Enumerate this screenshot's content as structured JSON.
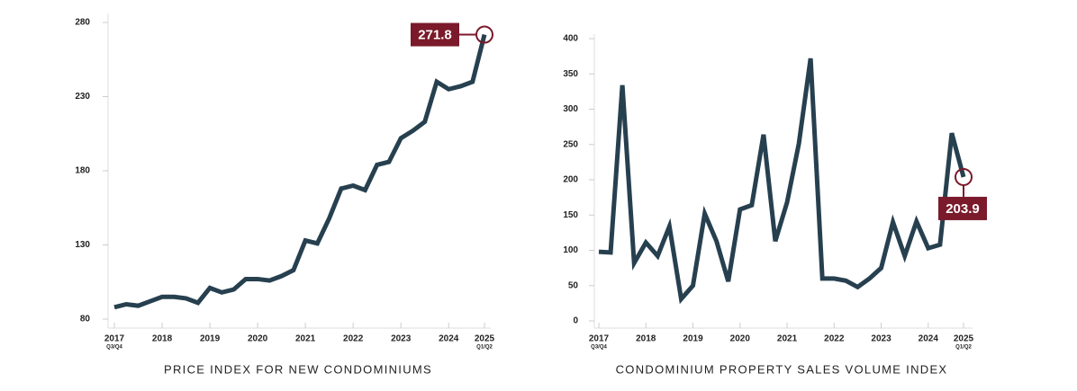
{
  "chart_data": [
    {
      "type": "line",
      "title": "PRICE INDEX FOR NEW CONDOMINIUMS",
      "categories": [
        "2017",
        null,
        null,
        null,
        "2018",
        null,
        null,
        null,
        "2019",
        null,
        null,
        null,
        "2020",
        null,
        null,
        null,
        "2021",
        null,
        null,
        null,
        "2022",
        null,
        null,
        null,
        "2023",
        null,
        null,
        null,
        "2024",
        null,
        null,
        "2025"
      ],
      "category_sublabels": [
        "Q3/Q4",
        null,
        null,
        null,
        null,
        null,
        null,
        null,
        null,
        null,
        null,
        null,
        null,
        null,
        null,
        null,
        null,
        null,
        null,
        null,
        null,
        null,
        null,
        null,
        null,
        null,
        null,
        null,
        null,
        null,
        null,
        "Q1/Q2"
      ],
      "series": [
        {
          "color": "#27404f",
          "values": [
            88,
            90,
            89,
            92,
            95,
            95,
            94,
            91,
            101,
            98,
            100,
            107,
            107,
            106,
            109,
            113,
            133,
            131,
            148,
            168,
            170,
            167,
            184,
            186,
            202,
            207,
            213,
            240,
            235,
            237,
            240,
            271.8
          ]
        }
      ],
      "ylim": [
        80,
        280
      ],
      "yticks": [
        80,
        130,
        180,
        230,
        280
      ],
      "callout_color": "#7a1a2a"
    },
    {
      "type": "line",
      "title": "CONDOMINIUM PROPERTY SALES VOLUME INDEX",
      "categories": [
        "2017",
        null,
        null,
        null,
        "2018",
        null,
        null,
        null,
        "2019",
        null,
        null,
        null,
        "2020",
        null,
        null,
        null,
        "2021",
        null,
        null,
        null,
        "2022",
        null,
        null,
        null,
        "2023",
        null,
        null,
        null,
        "2024",
        null,
        null,
        "2025"
      ],
      "category_sublabels": [
        "Q3/Q4",
        null,
        null,
        null,
        null,
        null,
        null,
        null,
        null,
        null,
        null,
        null,
        null,
        null,
        null,
        null,
        null,
        null,
        null,
        null,
        null,
        null,
        null,
        null,
        null,
        null,
        null,
        null,
        null,
        null,
        null,
        "Q1/Q2"
      ],
      "series": [
        {
          "color": "#27404f",
          "values": [
            98,
            97,
            334,
            82,
            111,
            92,
            134,
            31,
            50,
            152,
            113,
            56,
            158,
            164,
            264,
            113,
            168,
            251,
            372,
            60,
            60,
            57,
            48,
            60,
            75,
            140,
            92,
            141,
            103,
            108,
            266,
            203.9
          ]
        }
      ],
      "ylim": [
        0,
        400
      ],
      "yticks": [
        0,
        50,
        100,
        150,
        200,
        250,
        300,
        350,
        400
      ],
      "callout_color": "#7a1a2a"
    }
  ]
}
